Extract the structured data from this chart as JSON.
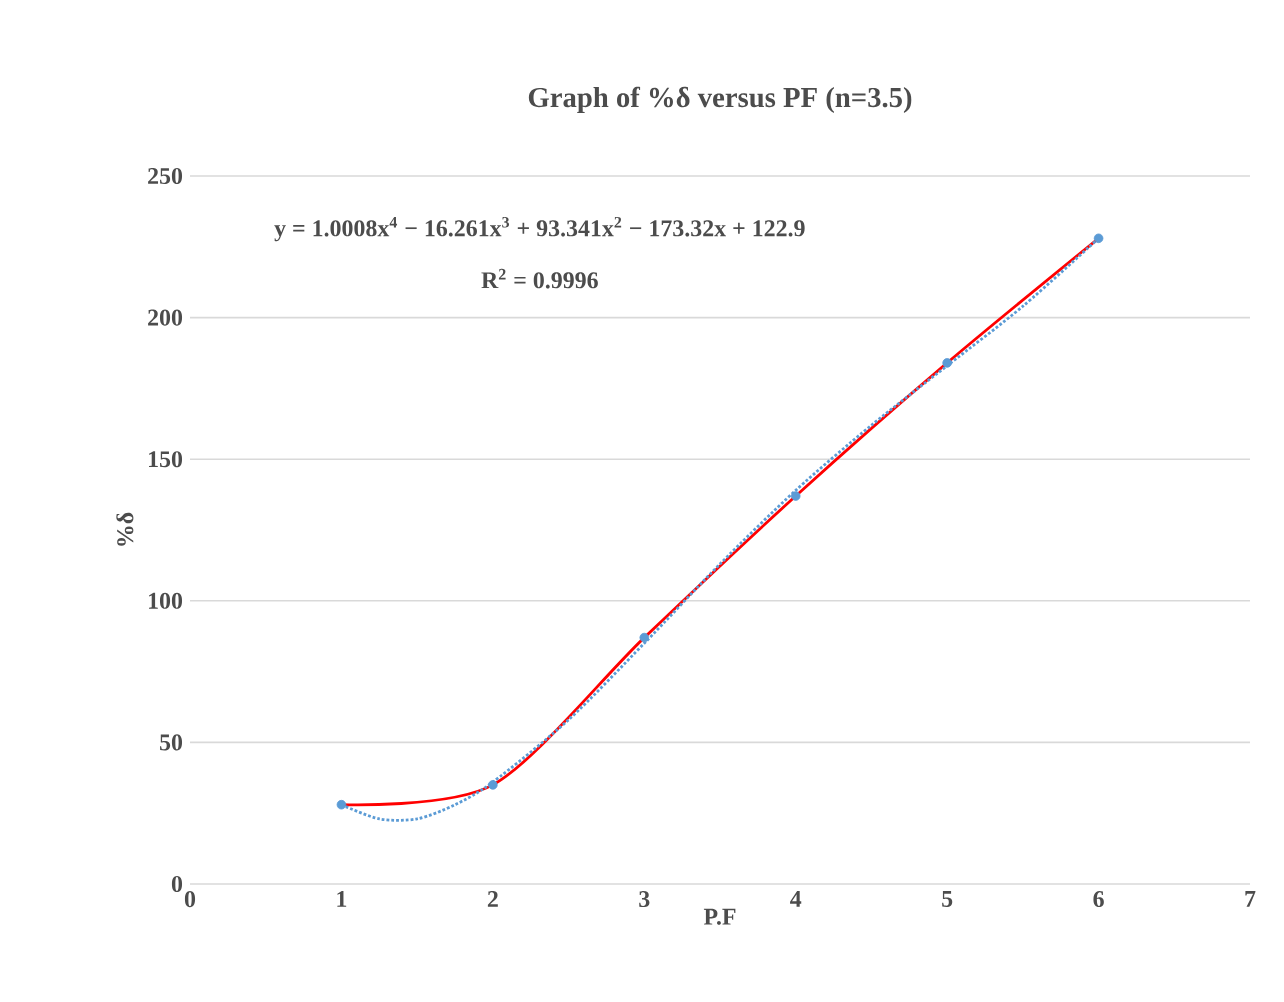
{
  "chart_data": {
    "type": "scatter",
    "title": "Graph of %δ versus PF (n=3.5)",
    "xlabel": "P.F",
    "ylabel": "%δ",
    "xlim": [
      0,
      7
    ],
    "xticks": [
      0,
      1,
      2,
      3,
      4,
      5,
      6,
      7
    ],
    "ylim": [
      0,
      250
    ],
    "yticks": [
      0,
      50,
      100,
      150,
      200,
      250
    ],
    "grid": "y",
    "annotations": [
      "y = 1.0008x$^{4}$ − 16.261x$^{3}$ + 93.341x$^{2}$ − 173.32x + 122.9",
      "R$^{2}$ = 0.9996"
    ],
    "series": [
      {
        "type": "line",
        "color": "#ff0000",
        "marker": "none",
        "line_style": "solid",
        "x": [
          1,
          2,
          3,
          4,
          5,
          6
        ],
        "values": [
          28,
          35,
          87,
          137,
          184,
          228
        ]
      },
      {
        "type": "line",
        "color": "#5b9bd5",
        "marker": "none",
        "line_style": "dotted",
        "x": [
          1,
          1.25,
          1.5,
          1.75,
          2,
          2.5,
          3,
          3.5,
          4,
          4.5,
          5,
          5.5,
          6
        ],
        "values": [
          28,
          23,
          23,
          28,
          36,
          58,
          85,
          113,
          139,
          162,
          183,
          204,
          228
        ]
      },
      {
        "color": "#5b9bd5",
        "marker": "circle",
        "x": [
          1,
          2,
          3,
          4,
          5,
          6
        ],
        "values": [
          28,
          35,
          87,
          137,
          184,
          228
        ]
      }
    ]
  }
}
